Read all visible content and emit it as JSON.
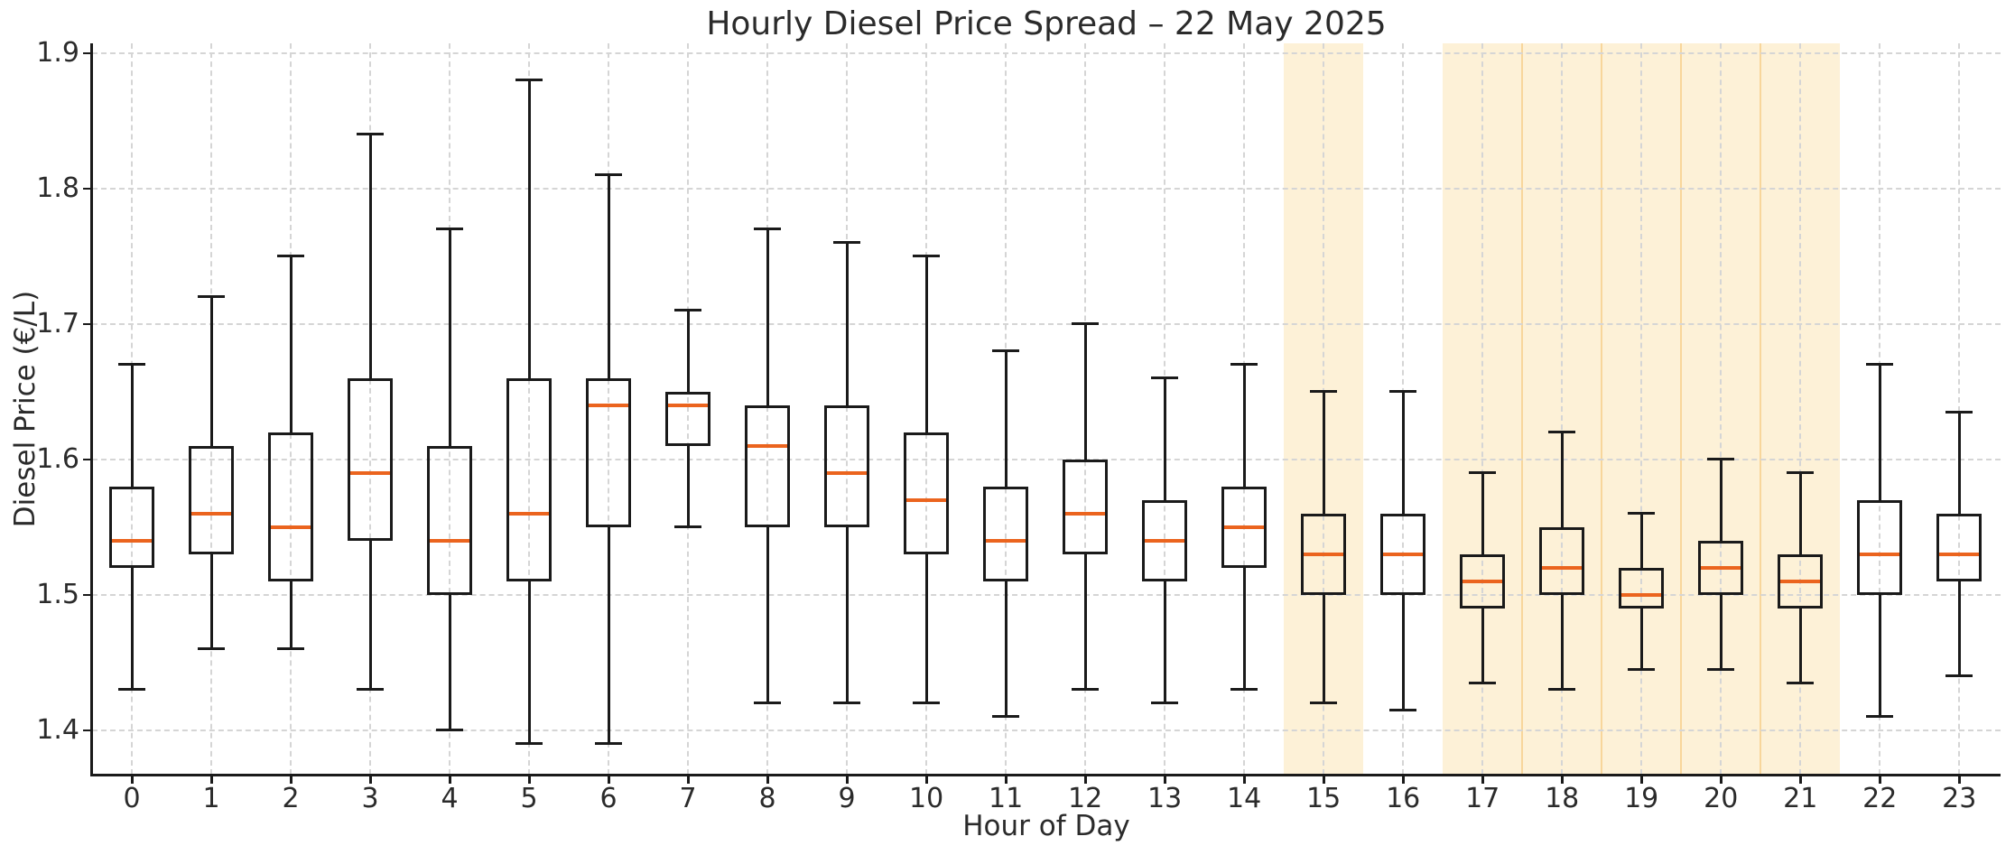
{
  "chart_data": {
    "type": "box",
    "title": "Hourly Diesel Price Spread – 22 May 2025",
    "xlabel": "Hour of Day",
    "ylabel": "Diesel Price (€/L)",
    "grid": "dashed, both axes",
    "legend": "none",
    "xlim": [
      -0.5,
      23.52
    ],
    "ylim": [
      1.3673,
      1.9073
    ],
    "y_ticks": [
      {
        "value": 1.4,
        "label": "1.4"
      },
      {
        "value": 1.5,
        "label": "1.5"
      },
      {
        "value": 1.6,
        "label": "1.6"
      },
      {
        "value": 1.7,
        "label": "1.7"
      },
      {
        "value": 1.8,
        "label": "1.8"
      },
      {
        "value": 1.9,
        "label": "1.9"
      }
    ],
    "categories": [
      "0",
      "1",
      "2",
      "3",
      "4",
      "5",
      "6",
      "7",
      "8",
      "9",
      "10",
      "11",
      "12",
      "13",
      "14",
      "15",
      "16",
      "17",
      "18",
      "19",
      "20",
      "21",
      "22",
      "23"
    ],
    "boxes": [
      {
        "hour": 0,
        "whisker_low": 1.43,
        "q1": 1.52,
        "median": 1.54,
        "q3": 1.58,
        "whisker_high": 1.67
      },
      {
        "hour": 1,
        "whisker_low": 1.46,
        "q1": 1.53,
        "median": 1.56,
        "q3": 1.61,
        "whisker_high": 1.72
      },
      {
        "hour": 2,
        "whisker_low": 1.46,
        "q1": 1.51,
        "median": 1.55,
        "q3": 1.62,
        "whisker_high": 1.75
      },
      {
        "hour": 3,
        "whisker_low": 1.43,
        "q1": 1.54,
        "median": 1.59,
        "q3": 1.66,
        "whisker_high": 1.84
      },
      {
        "hour": 4,
        "whisker_low": 1.4,
        "q1": 1.5,
        "median": 1.54,
        "q3": 1.61,
        "whisker_high": 1.77
      },
      {
        "hour": 5,
        "whisker_low": 1.39,
        "q1": 1.51,
        "median": 1.56,
        "q3": 1.66,
        "whisker_high": 1.88
      },
      {
        "hour": 6,
        "whisker_low": 1.39,
        "q1": 1.55,
        "median": 1.64,
        "q3": 1.66,
        "whisker_high": 1.81
      },
      {
        "hour": 7,
        "whisker_low": 1.55,
        "q1": 1.61,
        "median": 1.64,
        "q3": 1.65,
        "whisker_high": 1.71
      },
      {
        "hour": 8,
        "whisker_low": 1.42,
        "q1": 1.55,
        "median": 1.61,
        "q3": 1.64,
        "whisker_high": 1.77
      },
      {
        "hour": 9,
        "whisker_low": 1.42,
        "q1": 1.55,
        "median": 1.59,
        "q3": 1.64,
        "whisker_high": 1.76
      },
      {
        "hour": 10,
        "whisker_low": 1.42,
        "q1": 1.53,
        "median": 1.57,
        "q3": 1.62,
        "whisker_high": 1.75
      },
      {
        "hour": 11,
        "whisker_low": 1.41,
        "q1": 1.51,
        "median": 1.54,
        "q3": 1.58,
        "whisker_high": 1.68
      },
      {
        "hour": 12,
        "whisker_low": 1.43,
        "q1": 1.53,
        "median": 1.56,
        "q3": 1.6,
        "whisker_high": 1.7
      },
      {
        "hour": 13,
        "whisker_low": 1.42,
        "q1": 1.51,
        "median": 1.54,
        "q3": 1.57,
        "whisker_high": 1.66
      },
      {
        "hour": 14,
        "whisker_low": 1.43,
        "q1": 1.52,
        "median": 1.55,
        "q3": 1.58,
        "whisker_high": 1.67
      },
      {
        "hour": 15,
        "whisker_low": 1.42,
        "q1": 1.5,
        "median": 1.53,
        "q3": 1.56,
        "whisker_high": 1.65
      },
      {
        "hour": 16,
        "whisker_low": 1.415,
        "q1": 1.5,
        "median": 1.53,
        "q3": 1.56,
        "whisker_high": 1.65
      },
      {
        "hour": 17,
        "whisker_low": 1.435,
        "q1": 1.49,
        "median": 1.51,
        "q3": 1.53,
        "whisker_high": 1.59
      },
      {
        "hour": 18,
        "whisker_low": 1.43,
        "q1": 1.5,
        "median": 1.52,
        "q3": 1.55,
        "whisker_high": 1.62
      },
      {
        "hour": 19,
        "whisker_low": 1.445,
        "q1": 1.49,
        "median": 1.5,
        "q3": 1.52,
        "whisker_high": 1.56
      },
      {
        "hour": 20,
        "whisker_low": 1.445,
        "q1": 1.5,
        "median": 1.52,
        "q3": 1.54,
        "whisker_high": 1.6
      },
      {
        "hour": 21,
        "whisker_low": 1.435,
        "q1": 1.49,
        "median": 1.51,
        "q3": 1.53,
        "whisker_high": 1.59
      },
      {
        "hour": 22,
        "whisker_low": 1.41,
        "q1": 1.5,
        "median": 1.53,
        "q3": 1.57,
        "whisker_high": 1.67
      },
      {
        "hour": 23,
        "whisker_low": 1.44,
        "q1": 1.51,
        "median": 1.53,
        "q3": 1.56,
        "whisker_high": 1.635
      }
    ],
    "shaded_hours": [
      15,
      17,
      18,
      19,
      20,
      21
    ],
    "band_boundary_lines_x": [
      17.5,
      18.5,
      19.5,
      20.5
    ],
    "colors": {
      "median": "#eb641e",
      "box_edge": "#1a1a1a",
      "whisker": "#1a1a1a",
      "gridline": "#d5d5d5",
      "band_fill": "rgba(252,229,183,0.55)",
      "band_edge": "rgba(246,207,140,0.8)",
      "spine": "#1a1a1a",
      "text": "#2b2b2b",
      "background": "#ffffff"
    }
  }
}
